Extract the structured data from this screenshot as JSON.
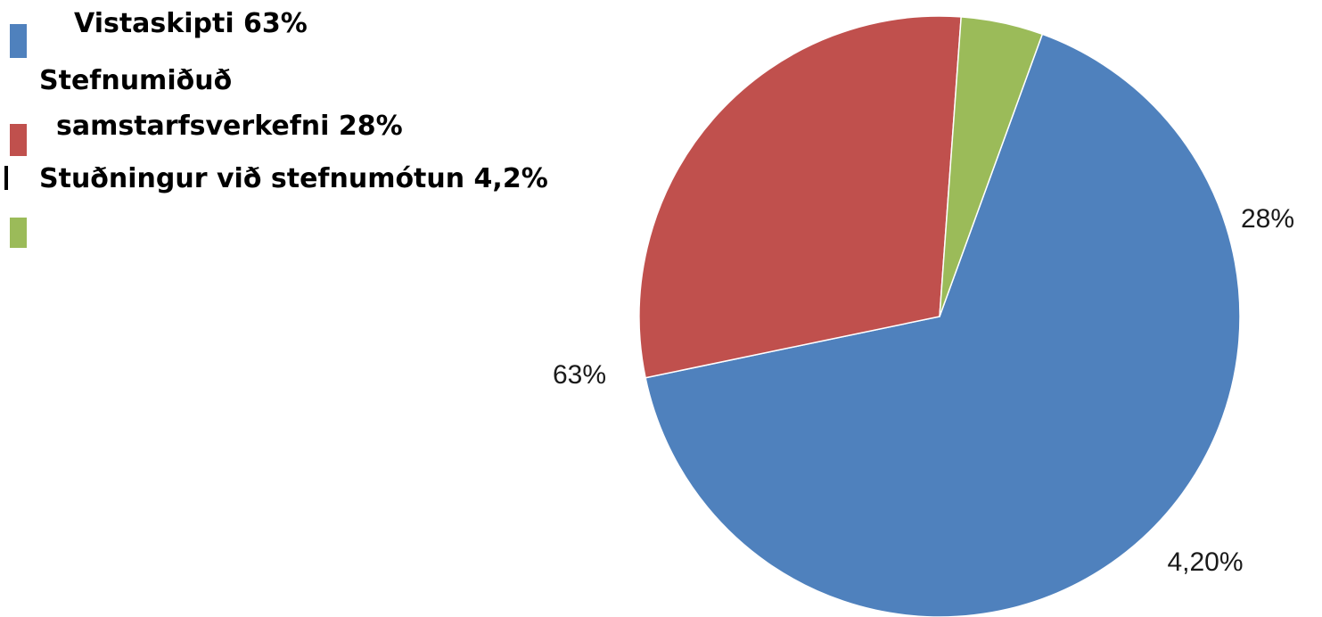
{
  "chart_data": {
    "type": "pie",
    "title": "",
    "legend_position": "top-left",
    "start_angle_deg": 20,
    "direction": "clockwise",
    "slices": [
      {
        "legend_label": "Vistaskipti 63%",
        "value": 63,
        "data_label": "63%",
        "color": "#4f81bd"
      },
      {
        "legend_label_lines": [
          "Stefnumiðuð",
          "samstarfsverkefni 28%"
        ],
        "value": 28,
        "data_label": "28%",
        "color": "#c0504d"
      },
      {
        "legend_label": "Stuðningur við stefnumótun 4,2%",
        "value": 4.2,
        "data_label": "4,20%",
        "color": "#9bbb59"
      }
    ]
  }
}
